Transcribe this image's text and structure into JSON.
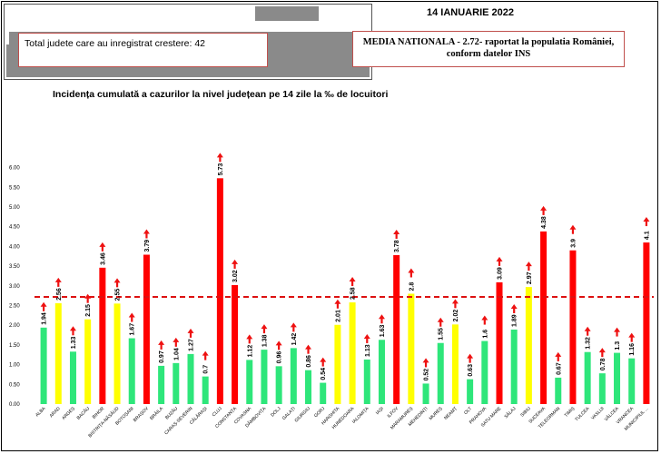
{
  "header": {
    "date": "14 IANUARIE 2022",
    "total_label": "Total judete care au inregistrat crestere: 42",
    "media_line1": "MEDIA NATIONALA - 2.72-  raportat la populatia României,",
    "media_line2": "conform datelor INS"
  },
  "colors": {
    "green": "#2ee67a",
    "yellow": "#ffff00",
    "red": "#ff0000",
    "arrow": "#ee1111",
    "threshold": "#dd1111"
  },
  "chart_data": {
    "type": "bar",
    "title": "Incidența cumulată a cazurilor la nivel județean pe 14 zile la ‰ de locuitori",
    "xlabel": "",
    "ylabel": "",
    "ylim": [
      0,
      6.0
    ],
    "yticks": [
      "0.00",
      "0.50",
      "1.00",
      "1.50",
      "2.00",
      "2.50",
      "3.00",
      "3.50",
      "4.00",
      "4.50",
      "5.00",
      "5.50",
      "6.00"
    ],
    "threshold": 2.72,
    "grid": false,
    "categories": [
      "ALBA",
      "ARAD",
      "ARGEȘ",
      "BACĂU",
      "BIHOR",
      "BISTRIȚA-NĂSĂUD",
      "BOTOȘANI",
      "BRAȘOV",
      "BRĂILA",
      "BUZĂU",
      "CARAȘ-SEVERIN",
      "CĂLĂRAȘI",
      "CLUJ",
      "CONSTANȚA",
      "COVASNA",
      "DÂMBOVIȚA",
      "DOLJ",
      "GALAȚI",
      "GIURGIU",
      "GORJ",
      "HARGHITA",
      "HUNEDOARA",
      "IALOMIȚA",
      "IAȘI",
      "ILFOV",
      "MARAMUREȘ",
      "MEHEDINȚI",
      "MUREȘ",
      "NEAMȚ",
      "OLT",
      "PRAHOVA",
      "SATU MARE",
      "SĂLAJ",
      "SIBIU",
      "SUCEAVA",
      "TELEORMAN",
      "TIMIȘ",
      "TULCEA",
      "VASLUI",
      "VÂLCEA",
      "VRANCEA",
      "MUNICIPIUL ..."
    ],
    "values": [
      1.94,
      2.56,
      1.33,
      2.15,
      3.46,
      2.55,
      1.67,
      3.79,
      0.97,
      1.04,
      1.27,
      0.7,
      5.73,
      3.02,
      1.12,
      1.38,
      0.96,
      1.42,
      0.86,
      0.54,
      2.01,
      2.58,
      1.13,
      1.63,
      3.78,
      2.8,
      0.52,
      1.55,
      2.02,
      0.63,
      1.6,
      3.09,
      1.89,
      2.97,
      4.38,
      0.67,
      3.9,
      1.32,
      0.78,
      1.3,
      1.16,
      4.1
    ],
    "value_labels": [
      "1.94",
      "2.56",
      "1.33",
      "2.15",
      "3.46",
      "2.55",
      "1.67",
      "3.79",
      "0.97",
      "1.04",
      "1.27",
      "0.7",
      "5.73",
      "3.02",
      "1.12",
      "1.38",
      "0.96",
      "1.42",
      "0.86",
      "0.54",
      "2.01",
      "2.58",
      "1.13",
      "1.63",
      "3.78",
      "2.8",
      "0.52",
      "1.55",
      "2.02",
      "0.63",
      "1.6",
      "3.09",
      "1.89",
      "2.97",
      "4.38",
      "0.67",
      "3.9",
      "1.32",
      "0.78",
      "1.3",
      "1.16",
      "4.1"
    ],
    "bar_colors": [
      "green",
      "yellow",
      "green",
      "yellow",
      "red",
      "yellow",
      "green",
      "red",
      "green",
      "green",
      "green",
      "green",
      "red",
      "red",
      "green",
      "green",
      "green",
      "green",
      "green",
      "green",
      "yellow",
      "yellow",
      "green",
      "green",
      "red",
      "yellow",
      "green",
      "green",
      "yellow",
      "green",
      "green",
      "red",
      "green",
      "yellow",
      "red",
      "green",
      "red",
      "green",
      "green",
      "green",
      "green",
      "red"
    ]
  }
}
